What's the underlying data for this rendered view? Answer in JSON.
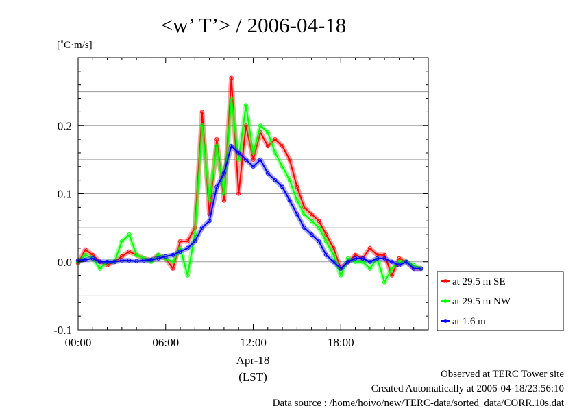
{
  "chart_data": {
    "type": "line",
    "title": "<w’ T’> / 2006-04-18",
    "ylabel": "[˚C·m/s]",
    "ylim": [
      -0.1,
      0.3
    ],
    "xlim_hours": [
      0,
      24
    ],
    "grid": "horizontal",
    "legend_placement": "right-bottom",
    "x_tick_labels": [
      "00:00",
      "06:00",
      "12:00",
      "18:00"
    ],
    "x_tick_hours": [
      0,
      6,
      12,
      18
    ],
    "x_sub_labels": [
      "Apr-18",
      "(LST)"
    ],
    "y_tick_labels": [
      "-0.1",
      "0.0",
      "0.1",
      "0.2"
    ],
    "y_tick_values": [
      -0.1,
      0.0,
      0.1,
      0.2
    ],
    "x_hours": [
      0.0,
      0.5,
      1.0,
      1.5,
      2.0,
      2.5,
      3.0,
      3.5,
      4.0,
      4.5,
      5.0,
      5.5,
      6.0,
      6.5,
      7.0,
      7.5,
      8.0,
      8.5,
      9.0,
      9.5,
      10.0,
      10.5,
      11.0,
      11.5,
      12.0,
      12.5,
      13.0,
      13.5,
      14.0,
      14.5,
      15.0,
      15.5,
      16.0,
      16.5,
      17.0,
      17.5,
      18.0,
      18.5,
      19.0,
      19.5,
      20.0,
      20.5,
      21.0,
      21.5,
      22.0,
      22.5,
      23.0,
      23.5
    ],
    "series": [
      {
        "name": "at 29.5 m SE",
        "color": "#ff0000",
        "values": [
          -0.002,
          0.018,
          0.01,
          0.0,
          -0.005,
          0.0,
          0.008,
          0.015,
          0.01,
          0.005,
          0.002,
          0.01,
          0.005,
          -0.01,
          0.03,
          0.03,
          0.05,
          0.22,
          0.07,
          0.18,
          0.09,
          0.27,
          0.1,
          0.2,
          0.15,
          0.19,
          0.17,
          0.18,
          0.17,
          0.15,
          0.11,
          0.08,
          0.07,
          0.06,
          0.04,
          0.02,
          -0.01,
          0.0,
          0.01,
          0.005,
          0.02,
          0.01,
          0.01,
          -0.02,
          0.005,
          0.0,
          -0.01,
          -0.01
        ]
      },
      {
        "name": "at 29.5 m NW",
        "color": "#00ff00",
        "values": [
          0.0,
          0.01,
          0.005,
          -0.01,
          0.0,
          0.0,
          0.03,
          0.04,
          0.01,
          0.005,
          0.0,
          0.01,
          0.005,
          0.0,
          0.02,
          -0.02,
          0.04,
          0.2,
          0.09,
          0.17,
          0.1,
          0.24,
          0.15,
          0.23,
          0.16,
          0.2,
          0.19,
          0.16,
          0.14,
          0.12,
          0.09,
          0.07,
          0.06,
          0.05,
          0.03,
          0.01,
          -0.02,
          0.005,
          0.0,
          0.0,
          -0.01,
          0.005,
          -0.03,
          -0.01,
          0.0,
          0.0,
          -0.005,
          -0.01
        ]
      },
      {
        "name": "at 1.6 m",
        "color": "#0000ff",
        "values": [
          0.002,
          0.003,
          0.005,
          0.0,
          0.0,
          0.0,
          0.002,
          0.002,
          0.001,
          0.002,
          0.003,
          0.005,
          0.008,
          0.01,
          0.015,
          0.02,
          0.03,
          0.05,
          0.06,
          0.11,
          0.13,
          0.17,
          0.16,
          0.15,
          0.14,
          0.15,
          0.13,
          0.12,
          0.11,
          0.09,
          0.07,
          0.05,
          0.04,
          0.03,
          0.01,
          0.0,
          -0.01,
          0.0,
          0.005,
          0.005,
          0.0,
          0.005,
          0.005,
          0.0,
          -0.005,
          0.0,
          -0.01,
          -0.01
        ]
      }
    ]
  },
  "footer": {
    "line1": "Observed at TERC Tower site",
    "line2": "Created Automatically at 2006-04-18/23:56:10",
    "line3": "Data source : /home/hoivo/new/TERC-data/sorted_data/CORR.10s.dat"
  }
}
